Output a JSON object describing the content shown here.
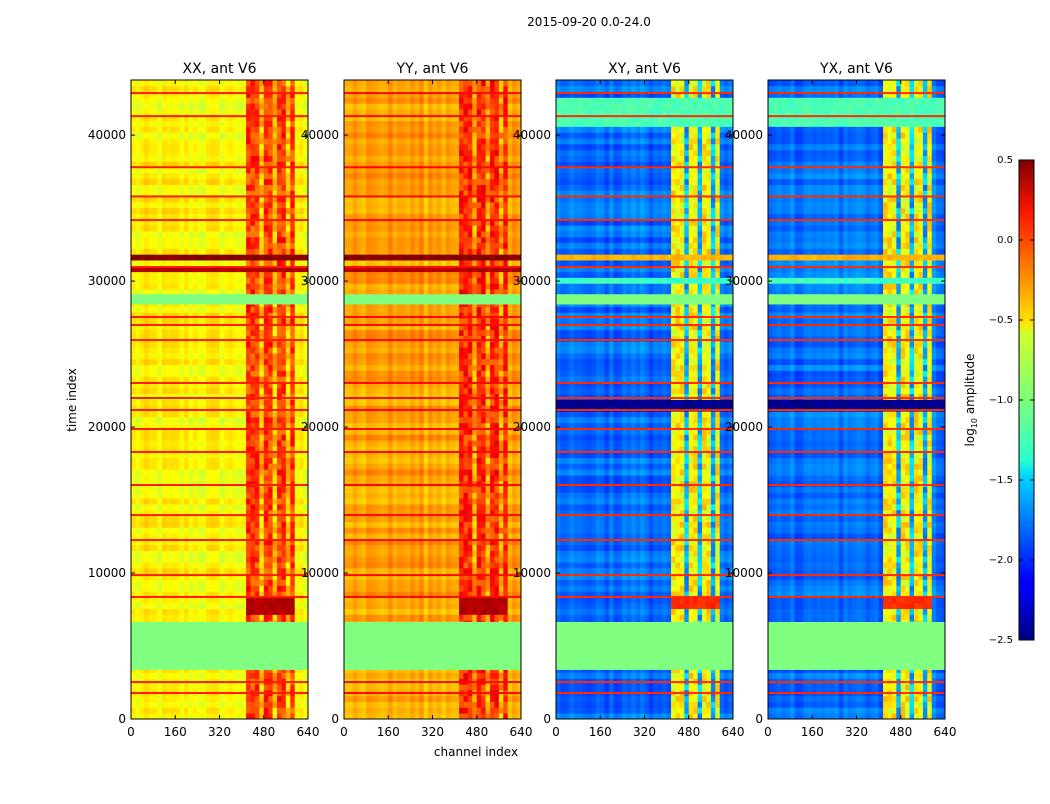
{
  "chart_data": {
    "type": "heatmap",
    "suptitle": "2015-09-20 0.0-24.0",
    "xlabel": "channel index",
    "ylabel": "time index",
    "xlim": [
      0,
      640
    ],
    "ylim": [
      0,
      43776
    ],
    "xticks": [
      "0",
      "160",
      "320",
      "480",
      "640"
    ],
    "yticks": [
      "0",
      "10000",
      "20000",
      "30000",
      "40000"
    ],
    "colorbar": {
      "label_main": "log",
      "label_sub": "10",
      "label_rest": " amplitude",
      "range": [
        -2.5,
        0.5
      ],
      "ticks": [
        "0.5",
        "0.0",
        "−0.5",
        "−1.0",
        "−1.5",
        "−2.0",
        "−2.5"
      ],
      "colormap": "jet"
    },
    "flag_value": -1.0,
    "flagged_time_ranges": [
      [
        3360,
        6650
      ],
      [
        28400,
        29100
      ]
    ],
    "line_times": [
      1780,
      2530,
      8360,
      9860,
      12260,
      13970,
      16030,
      18290,
      19870,
      21170,
      21990,
      23020,
      25960,
      26990,
      27540,
      30960,
      34180,
      35800,
      37800,
      41300,
      42880
    ],
    "high_channel_range": [
      420,
      600
    ],
    "channel_gaps": [
      [
        465,
        478
      ],
      [
        512,
        522
      ],
      [
        560,
        570
      ]
    ],
    "panels": [
      {
        "title": "XX, ant V6",
        "base": -0.62,
        "high": -0.05,
        "gap": -0.45,
        "line_value": 0.05,
        "bands": [
          [
            31300,
            32000,
            0.48
          ],
          [
            30600,
            30900,
            0.35
          ],
          [
            7200,
            8400,
            0.35,
            "high"
          ]
        ]
      },
      {
        "title": "YY, ant V6",
        "base": -0.35,
        "high": 0.0,
        "gap": -0.35,
        "line_value": 0.1,
        "bands": [
          [
            31300,
            32000,
            0.48
          ],
          [
            30600,
            30900,
            0.35
          ],
          [
            7200,
            8400,
            0.35,
            "high"
          ]
        ]
      },
      {
        "title": "XY, ant V6",
        "base": -1.8,
        "high": -0.6,
        "gap": -1.6,
        "line_value": 0.0,
        "bands": [
          [
            31300,
            32000,
            -0.4
          ],
          [
            21170,
            21990,
            -2.45
          ],
          [
            29700,
            30300,
            -1.2
          ],
          [
            40600,
            42500,
            -1.15
          ],
          [
            7400,
            8200,
            0.0,
            "high"
          ]
        ]
      },
      {
        "title": "YX, ant V6",
        "base": -1.8,
        "high": -0.6,
        "gap": -1.6,
        "line_value": 0.0,
        "bands": [
          [
            31300,
            32000,
            -0.4
          ],
          [
            21170,
            21990,
            -2.45
          ],
          [
            29700,
            30300,
            -1.2
          ],
          [
            40600,
            42500,
            -1.15
          ],
          [
            7400,
            8200,
            0.0,
            "high"
          ]
        ]
      }
    ]
  }
}
